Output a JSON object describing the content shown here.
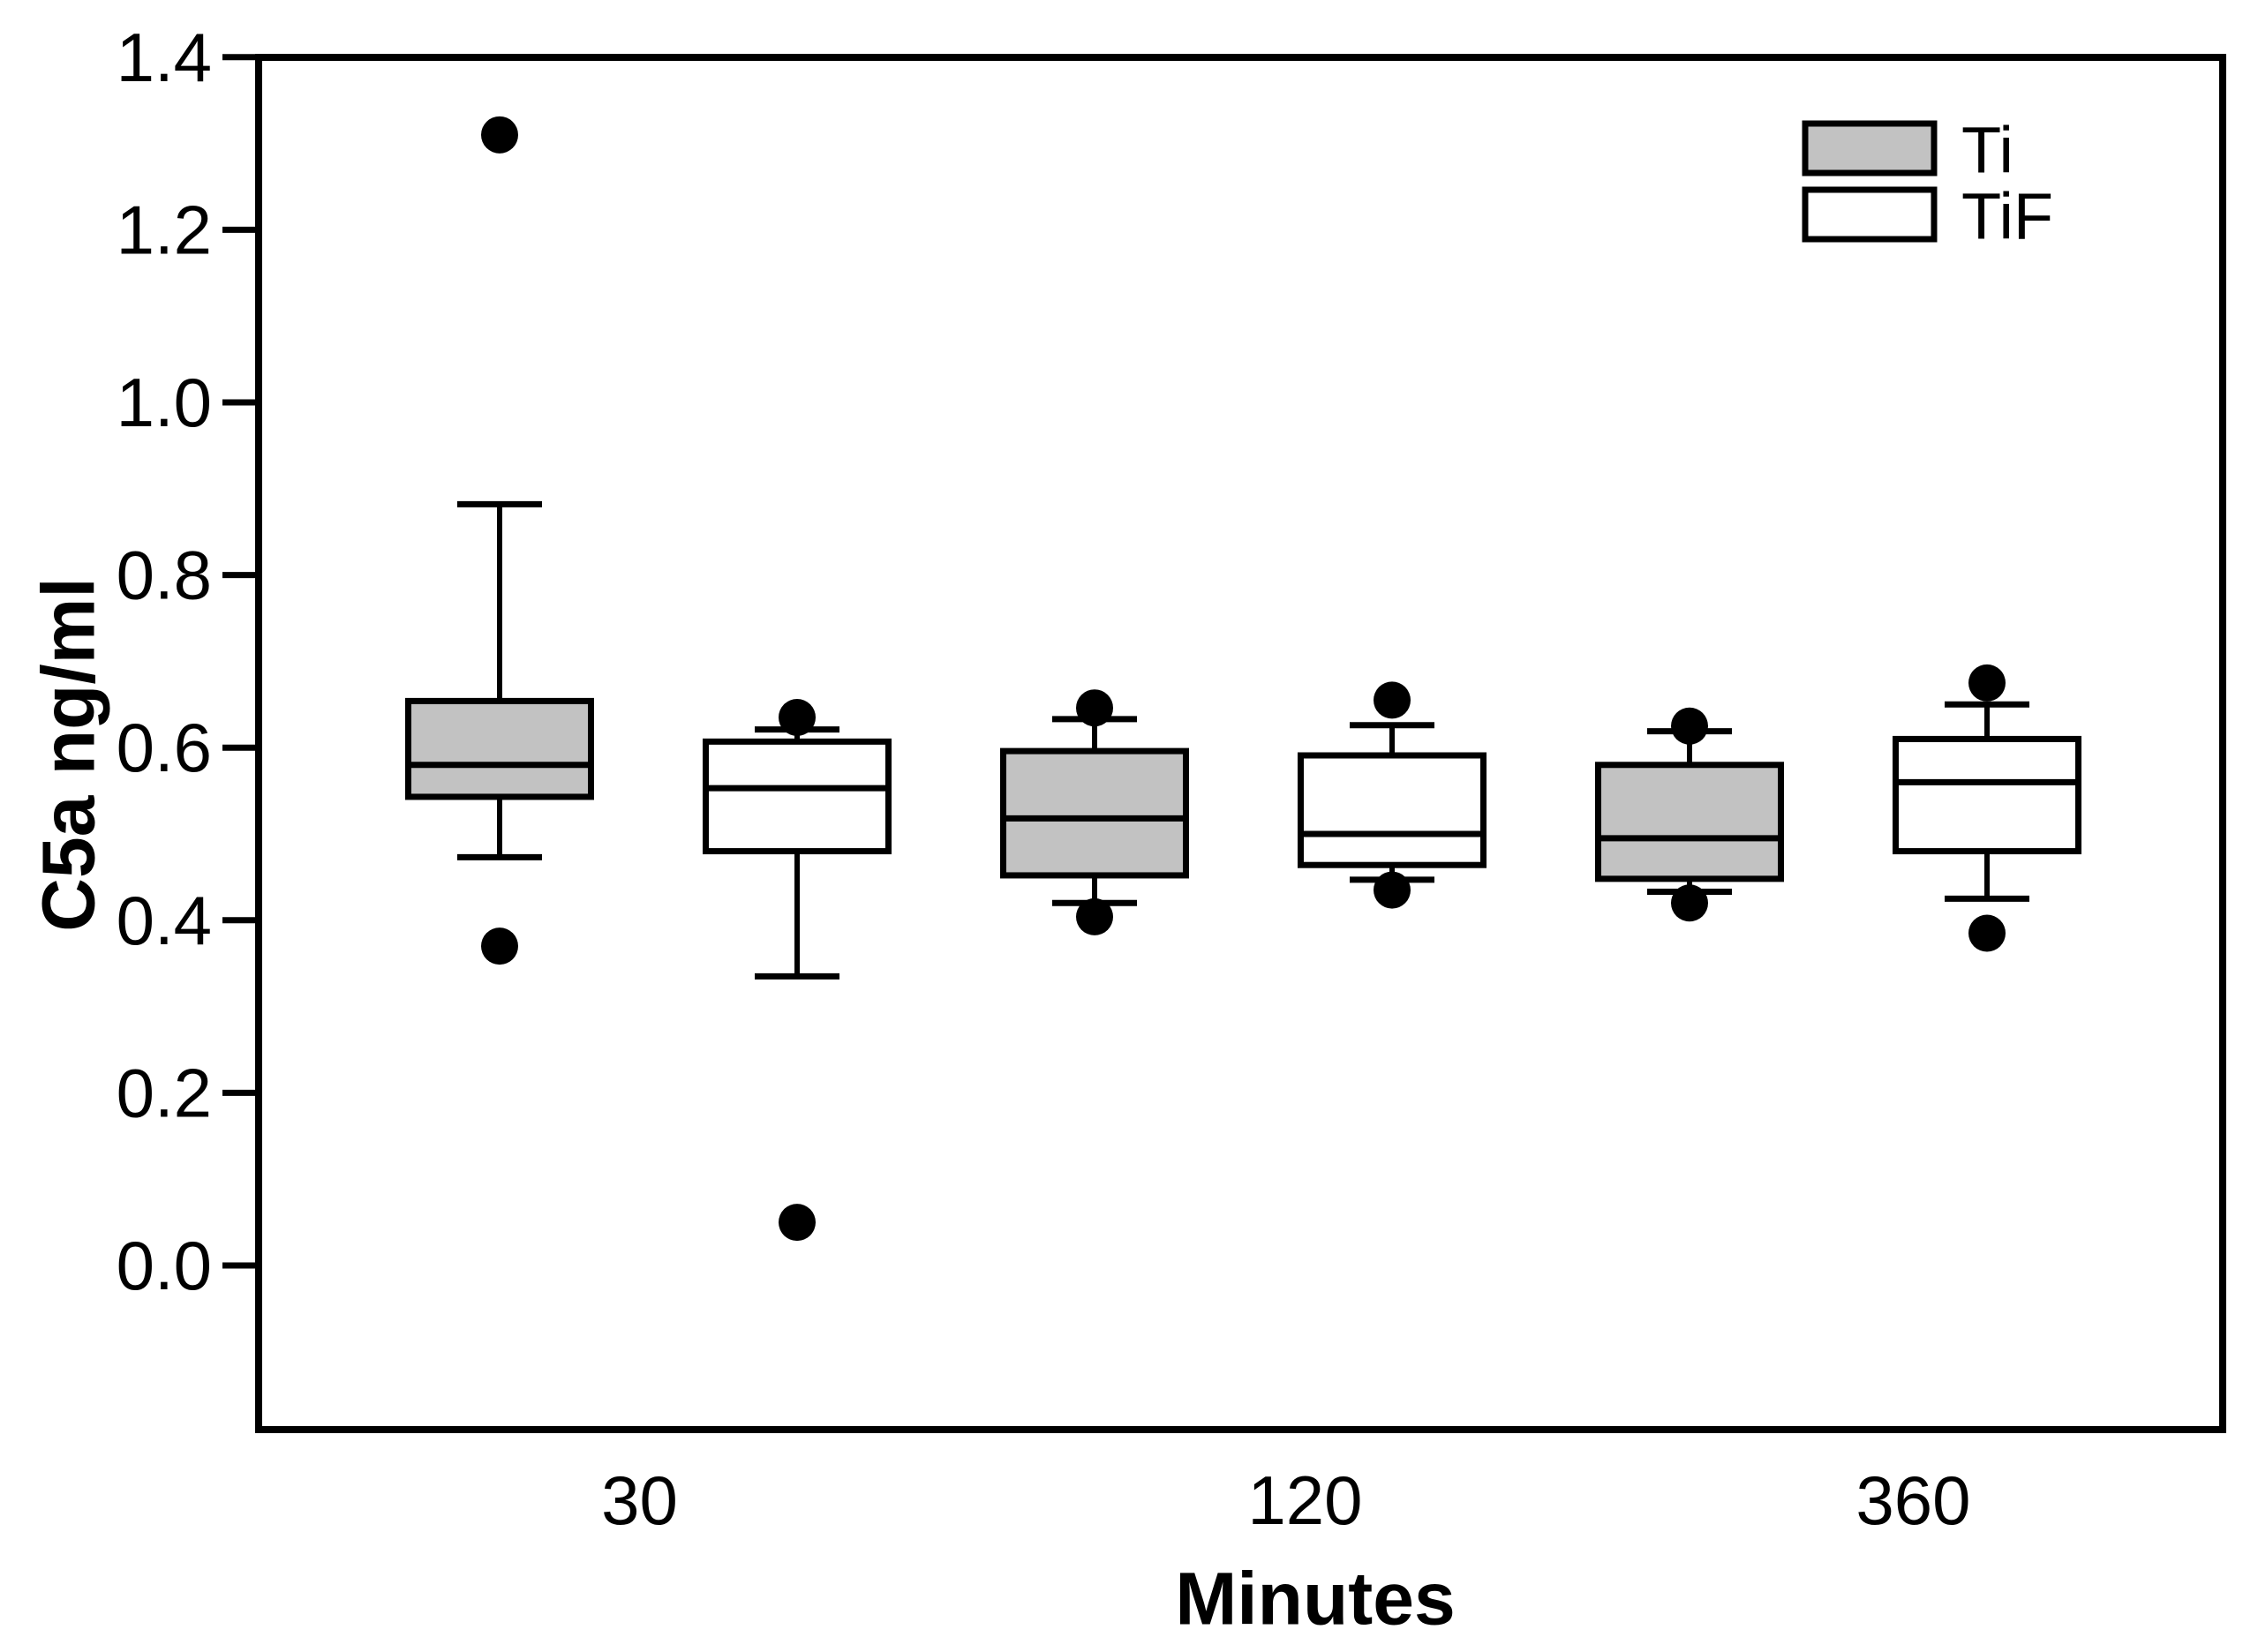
{
  "figure": {
    "background": "#ffffff"
  },
  "axis_titles": {
    "y": "C5a ng/ml",
    "x": "Minutes"
  },
  "chart_data": {
    "type": "boxplot",
    "title": "",
    "xlabel": "Minutes",
    "ylabel": "C5a ng/ml",
    "y_axis": {
      "min": 0.0,
      "max": 1.4,
      "tick_step": 0.2,
      "ticks": [
        {
          "value": 1.4,
          "label": "1.4"
        },
        {
          "value": 1.2,
          "label": "1.2"
        },
        {
          "value": 1.0,
          "label": "1.0"
        },
        {
          "value": 0.8,
          "label": "0.8"
        },
        {
          "value": 0.6,
          "label": "0.6"
        },
        {
          "value": 0.4,
          "label": "0.4"
        },
        {
          "value": 0.2,
          "label": "0.2"
        },
        {
          "value": 0.0,
          "label": "0.0"
        }
      ],
      "grid": false
    },
    "categories": [
      "30",
      "120",
      "360"
    ],
    "legend": {
      "position": "top-right",
      "entries": [
        {
          "label": "Ti",
          "fill": "#c2c2c2"
        },
        {
          "label": "TiF",
          "fill": "#ffffff"
        }
      ]
    },
    "colors": {
      "line": "#000000",
      "ti_fill": "#c2c2c2",
      "tif_fill": "#ffffff",
      "background": "#ffffff"
    },
    "series": [
      {
        "name": "Ti",
        "fill": "#c2c2c2",
        "boxes": [
          {
            "category": "30",
            "whisker_low": 0.473,
            "q1": 0.543,
            "median": 0.58,
            "q3": 0.654,
            "whisker_high": 0.882,
            "outliers_above": [
              1.31
            ],
            "outliers_below": [
              0.37
            ]
          },
          {
            "category": "120",
            "whisker_low": 0.42,
            "q1": 0.452,
            "median": 0.518,
            "q3": 0.596,
            "whisker_high": 0.633,
            "outliers_above": [
              0.646
            ],
            "outliers_below": [
              0.404
            ]
          },
          {
            "category": "360",
            "whisker_low": 0.433,
            "q1": 0.448,
            "median": 0.495,
            "q3": 0.58,
            "whisker_high": 0.619,
            "outliers_above": [
              0.625
            ],
            "outliers_below": [
              0.42
            ]
          }
        ]
      },
      {
        "name": "TiF",
        "fill": "#ffffff",
        "boxes": [
          {
            "category": "30",
            "whisker_low": 0.335,
            "q1": 0.48,
            "median": 0.553,
            "q3": 0.607,
            "whisker_high": 0.621,
            "outliers_above": [
              0.635
            ],
            "outliers_below": [
              0.05
            ]
          },
          {
            "category": "120",
            "whisker_low": 0.447,
            "q1": 0.464,
            "median": 0.5,
            "q3": 0.591,
            "whisker_high": 0.626,
            "outliers_above": [
              0.655
            ],
            "outliers_below": [
              0.435
            ]
          },
          {
            "category": "360",
            "whisker_low": 0.425,
            "q1": 0.48,
            "median": 0.56,
            "q3": 0.61,
            "whisker_high": 0.65,
            "outliers_above": [
              0.675
            ],
            "outliers_below": [
              0.385
            ]
          }
        ]
      }
    ]
  }
}
